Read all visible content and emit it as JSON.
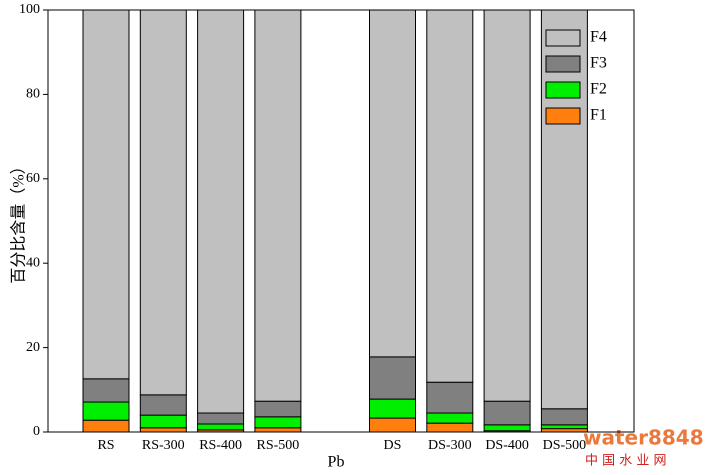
{
  "chart_data": {
    "type": "stacked-bar",
    "xlabel": "Pb",
    "ylabel": "百分比含量（%）",
    "categories": [
      "RS",
      "RS-300",
      "RS-400",
      "RS-500",
      null,
      "DS",
      "DS-300",
      "DS-400",
      "DS-500"
    ],
    "series": [
      {
        "name": "F1",
        "color": "#ff7f0e",
        "values": [
          2.8,
          1.0,
          0.5,
          1.0,
          null,
          3.3,
          2.1,
          0.3,
          0.8
        ]
      },
      {
        "name": "F2",
        "color": "#00ee00",
        "values": [
          4.3,
          3.0,
          1.4,
          2.6,
          null,
          4.5,
          2.4,
          1.4,
          0.9
        ]
      },
      {
        "name": "F3",
        "color": "#808080",
        "values": [
          5.5,
          4.8,
          2.6,
          3.7,
          null,
          10.0,
          7.3,
          5.6,
          3.8
        ]
      },
      {
        "name": "F4",
        "color": "#c0c0c0",
        "values": [
          87.4,
          91.2,
          95.5,
          92.7,
          null,
          82.2,
          88.2,
          92.7,
          94.5
        ]
      }
    ],
    "ylim": [
      0,
      100
    ],
    "yticks": [
      0,
      20,
      40,
      60,
      80,
      100
    ],
    "legend": "top-right",
    "watermark": [
      "water8848",
      "中 国 水 业 网"
    ]
  }
}
